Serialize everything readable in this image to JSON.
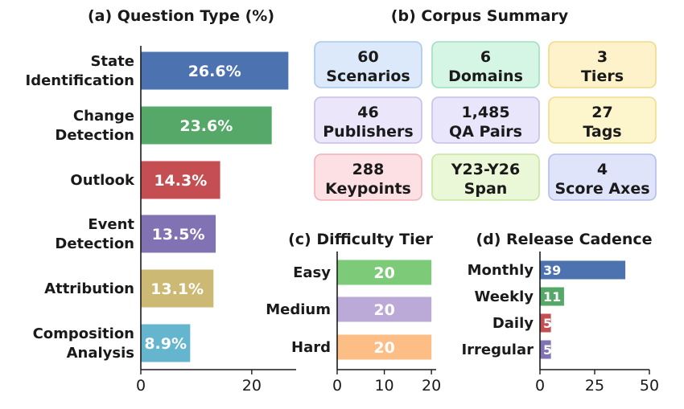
{
  "chart_data": [
    {
      "type": "bar",
      "orientation": "horizontal",
      "title": "(a) Question Type (%)",
      "categories": [
        [
          "State",
          "Identification"
        ],
        [
          "Change",
          "Detection"
        ],
        [
          "Outlook"
        ],
        [
          "Event",
          "Detection"
        ],
        [
          "Attribution"
        ],
        [
          "Composition",
          "Analysis"
        ]
      ],
      "values": [
        26.6,
        23.6,
        14.3,
        13.5,
        13.1,
        8.9
      ],
      "value_labels": [
        "26.6%",
        "23.6%",
        "14.3%",
        "13.5%",
        "13.1%",
        "8.9%"
      ],
      "colors": [
        "#4c72b0",
        "#55a868",
        "#c44e52",
        "#8172b3",
        "#ccb974",
        "#64b5cd"
      ],
      "xlim": [
        0,
        28
      ],
      "xticks": [
        0,
        20
      ],
      "grid": false
    },
    {
      "type": "table",
      "title": "(b) Corpus Summary",
      "cards": [
        {
          "value": "60",
          "label": "Scenarios",
          "fill": "#dce9fb",
          "border": "#a9c8ee"
        },
        {
          "value": "6",
          "label": "Domains",
          "fill": "#d6f6e5",
          "border": "#9fdfbd"
        },
        {
          "value": "3",
          "label": "Tiers",
          "fill": "#fdf2c9",
          "border": "#f0d98a"
        },
        {
          "value": "46",
          "label": "Publishers",
          "fill": "#ebe6fa",
          "border": "#c7bde9"
        },
        {
          "value": "1,485",
          "label": "QA Pairs",
          "fill": "#e9e5fb",
          "border": "#c6bfec"
        },
        {
          "value": "27",
          "label": "Tags",
          "fill": "#fdf5cc",
          "border": "#eedd90"
        },
        {
          "value": "288",
          "label": "Keypoints",
          "fill": "#fde0e4",
          "border": "#f2b1ba"
        },
        {
          "value": "Y23-Y26",
          "label": "Span",
          "fill": "#eaf8d7",
          "border": "#c6e6a0"
        },
        {
          "value": "4",
          "label": "Score Axes",
          "fill": "#dfe4fb",
          "border": "#b2bdeb"
        }
      ]
    },
    {
      "type": "bar",
      "orientation": "horizontal",
      "title": "(c) Difficulty Tier",
      "categories": [
        "Easy",
        "Medium",
        "Hard"
      ],
      "values": [
        20,
        20,
        20
      ],
      "value_labels": [
        "20",
        "20",
        "20"
      ],
      "colors": [
        "#7dcb79",
        "#bba9d8",
        "#fdbe86"
      ],
      "xlim": [
        0,
        21
      ],
      "xticks": [
        0,
        10,
        20
      ],
      "grid": false
    },
    {
      "type": "bar",
      "orientation": "horizontal",
      "title": "(d) Release Cadence",
      "categories": [
        "Monthly",
        "Weekly",
        "Daily",
        "Irregular"
      ],
      "values": [
        39,
        11,
        5,
        5
      ],
      "value_labels": [
        "39",
        "11",
        "5",
        "5"
      ],
      "colors": [
        "#4c72b0",
        "#55a868",
        "#c44e52",
        "#8172b3"
      ],
      "xlim": [
        0,
        50
      ],
      "xticks": [
        0,
        25,
        50
      ],
      "grid": false
    }
  ]
}
